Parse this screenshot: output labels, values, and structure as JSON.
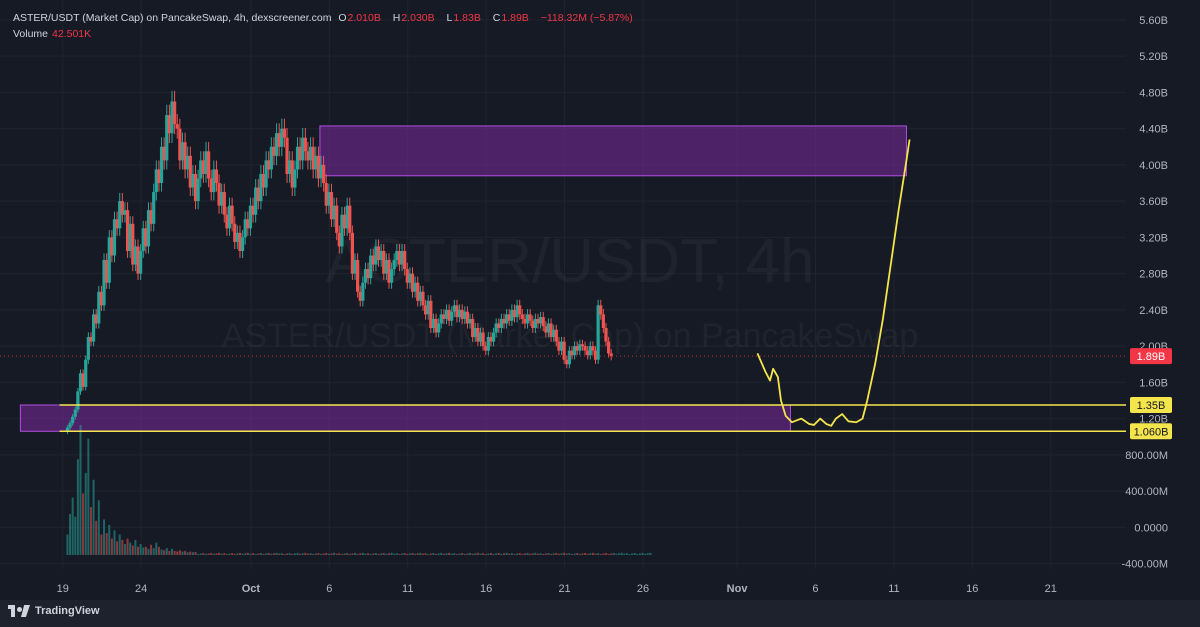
{
  "header": {
    "title": "ASTER/USDT (Market Cap) on PancakeSwap, 4h, dexscreener.com",
    "ohlc": [
      {
        "label": "O",
        "value": "2.010B"
      },
      {
        "label": "H",
        "value": "2.030B"
      },
      {
        "label": "L",
        "value": "1.83B"
      },
      {
        "label": "C",
        "value": "1.89B"
      }
    ],
    "change": "−118.32M (−5.87%)",
    "volume_label": "Volume",
    "volume_value": "42.501K"
  },
  "watermark": {
    "line1": "ASTER/USDT, 4h",
    "line2": "ASTER/USDT (Market Cap) on PancakeSwap"
  },
  "footer": {
    "brand": "TradingView"
  },
  "colors": {
    "background": "#161a25",
    "up": "#26a69a",
    "down": "#ef5350",
    "zone_fill": "#7b2a9e",
    "zone_border": "#b04fe0",
    "projection": "#f5e54c",
    "price_badge": "#f23645"
  },
  "chart_data": {
    "type": "candlestick",
    "title": "ASTER/USDT (Market Cap) on PancakeSwap, 4h, dexscreener.com",
    "y_unit": "USD market cap",
    "price_axis": {
      "ticks": [
        {
          "value": 5600000000.0,
          "label": "5.60B"
        },
        {
          "value": 5200000000.0,
          "label": "5.20B"
        },
        {
          "value": 4800000000.0,
          "label": "4.80B"
        },
        {
          "value": 4400000000.0,
          "label": "4.40B"
        },
        {
          "value": 4000000000.0,
          "label": "4.00B"
        },
        {
          "value": 3600000000.0,
          "label": "3.60B"
        },
        {
          "value": 3200000000.0,
          "label": "3.20B"
        },
        {
          "value": 2800000000.0,
          "label": "2.80B"
        },
        {
          "value": 2400000000.0,
          "label": "2.40B"
        },
        {
          "value": 2000000000.0,
          "label": "2.00B"
        },
        {
          "value": 1600000000.0,
          "label": "1.60B"
        },
        {
          "value": 1200000000.0,
          "label": "1.20B"
        },
        {
          "value": 800000000.0,
          "label": "800.00M"
        },
        {
          "value": 400000000.0,
          "label": "400.00M"
        },
        {
          "value": 0,
          "label": "0.0000"
        },
        {
          "value": -400000000.0,
          "label": "-400.00M"
        }
      ],
      "range": [
        -460000000.0,
        5820000000.0
      ]
    },
    "time_axis": {
      "ticks": [
        "19",
        "24",
        "Oct",
        "6",
        "11",
        "16",
        "21",
        "26",
        "Nov",
        "6",
        "11",
        "16",
        "21"
      ],
      "tick_days": [
        0,
        5,
        12,
        17,
        22,
        27,
        32,
        37,
        43,
        48,
        53,
        58,
        63
      ],
      "range_days": [
        -4,
        67.8
      ]
    },
    "price_labels": [
      {
        "label": "1.89B",
        "value": 1890000000.0,
        "style": "last"
      },
      {
        "label": "1.35B",
        "value": 1350000000.0,
        "style": "level"
      },
      {
        "label": "1.060B",
        "value": 1060000000.0,
        "style": "level"
      }
    ],
    "horizontal_levels": [
      1350000000.0,
      1060000000.0
    ],
    "zones": [
      {
        "name": "resistance",
        "day_start": 16.4,
        "day_end": 53.8,
        "top": 4430000000.0,
        "bottom": 3880000000.0
      },
      {
        "name": "support",
        "day_start": -2.7,
        "day_end": 46.4,
        "top": 1350000000.0,
        "bottom": 1060000000.0
      }
    ],
    "projection_path": [
      [
        44.3,
        1920000000.0
      ],
      [
        44.8,
        1720000000.0
      ],
      [
        45.1,
        1620000000.0
      ],
      [
        45.3,
        1750000000.0
      ],
      [
        45.6,
        1660000000.0
      ],
      [
        45.8,
        1400000000.0
      ],
      [
        46.1,
        1230000000.0
      ],
      [
        46.5,
        1160000000.0
      ],
      [
        47.1,
        1200000000.0
      ],
      [
        47.6,
        1140000000.0
      ],
      [
        47.9,
        1130000000.0
      ],
      [
        48.3,
        1200000000.0
      ],
      [
        48.7,
        1140000000.0
      ],
      [
        49.0,
        1120000000.0
      ],
      [
        49.3,
        1200000000.0
      ],
      [
        49.7,
        1250000000.0
      ],
      [
        50.1,
        1170000000.0
      ],
      [
        50.6,
        1160000000.0
      ],
      [
        51.0,
        1200000000.0
      ],
      [
        51.3,
        1400000000.0
      ],
      [
        51.8,
        1800000000.0
      ],
      [
        52.3,
        2300000000.0
      ],
      [
        52.8,
        2900000000.0
      ],
      [
        53.3,
        3500000000.0
      ],
      [
        53.8,
        4050000000.0
      ],
      [
        54.0,
        4280000000.0
      ]
    ],
    "close_series": {
      "day_start": 0.3,
      "step_days": 0.1667,
      "values": [
        1100000000.0,
        1150000000.0,
        1220000000.0,
        1300000000.0,
        1500000000.0,
        1700000000.0,
        1550000000.0,
        1850000000.0,
        2100000000.0,
        2050000000.0,
        2350000000.0,
        2250000000.0,
        2600000000.0,
        2450000000.0,
        2950000000.0,
        2700000000.0,
        3200000000.0,
        3000000000.0,
        3400000000.0,
        3300000000.0,
        3600000000.0,
        3450000000.0,
        3500000000.0,
        3050000000.0,
        3350000000.0,
        2900000000.0,
        3100000000.0,
        2800000000.0,
        3050000000.0,
        3300000000.0,
        3100000000.0,
        3500000000.0,
        3350000000.0,
        3700000000.0,
        3950000000.0,
        3800000000.0,
        4200000000.0,
        4050000000.0,
        4550000000.0,
        4350000000.0,
        4700000000.0,
        4450000000.0,
        4400000000.0,
        4050000000.0,
        4250000000.0,
        3950000000.0,
        4100000000.0,
        3750000000.0,
        3900000000.0,
        3600000000.0,
        3850000000.0,
        4050000000.0,
        3900000000.0,
        4150000000.0,
        3850000000.0,
        3700000000.0,
        3950000000.0,
        3800000000.0,
        3550000000.0,
        3700000000.0,
        3450000000.0,
        3300000000.0,
        3550000000.0,
        3350000000.0,
        3150000000.0,
        3250000000.0,
        3050000000.0,
        3200000000.0,
        3400000000.0,
        3300000000.0,
        3550000000.0,
        3450000000.0,
        3750000000.0,
        3600000000.0,
        3900000000.0,
        3750000000.0,
        4050000000.0,
        3950000000.0,
        4200000000.0,
        4100000000.0,
        4350000000.0,
        4200000000.0,
        4400000000.0,
        4300000000.0,
        3900000000.0,
        4050000000.0,
        3750000000.0,
        3950000000.0,
        4200000000.0,
        4050000000.0,
        4300000000.0,
        4150000000.0,
        4050000000.0,
        4200000000.0,
        3950000000.0,
        4100000000.0,
        3850000000.0,
        4000000000.0,
        3800000000.0,
        3550000000.0,
        3700000000.0,
        3400000000.0,
        3550000000.0,
        3250000000.0,
        3100000000.0,
        3450000000.0,
        3300000000.0,
        3550000000.0,
        3250000000.0,
        2800000000.0,
        2950000000.0,
        2600000000.0,
        2500000000.0,
        2700000000.0,
        2850000000.0,
        2750000000.0,
        3000000000.0,
        2900000000.0,
        3100000000.0,
        2950000000.0,
        3050000000.0,
        2800000000.0,
        2950000000.0,
        2700000000.0,
        2850000000.0,
        2950000000.0,
        3050000000.0,
        2900000000.0,
        3050000000.0,
        2850000000.0,
        2700000000.0,
        2800000000.0,
        2600000000.0,
        2700000000.0,
        2500000000.0,
        2600000000.0,
        2450000000.0,
        2350000000.0,
        2500000000.0,
        2200000000.0,
        2300000000.0,
        2150000000.0,
        2250000000.0,
        2350000000.0,
        2300000000.0,
        2400000000.0,
        2280000000.0,
        2380000000.0,
        2450000000.0,
        2320000000.0,
        2400000000.0,
        2300000000.0,
        2380000000.0,
        2250000000.0,
        2300000000.0,
        2100000000.0,
        2200000000.0,
        2050000000.0,
        2150000000.0,
        2000000000.0,
        1950000000.0,
        2100000000.0,
        2050000000.0,
        2150000000.0,
        2250000000.0,
        2200000000.0,
        2300000000.0,
        2250000000.0,
        2350000000.0,
        2280000000.0,
        2400000000.0,
        2320000000.0,
        2450000000.0,
        2350000000.0,
        2300000000.0,
        2250000000.0,
        2350000000.0,
        2280000000.0,
        2200000000.0,
        2300000000.0,
        2250000000.0,
        2320000000.0,
        2220000000.0,
        2150000000.0,
        2250000000.0,
        2100000000.0,
        2180000000.0,
        2050000000.0,
        1950000000.0,
        2050000000.0,
        1850000000.0,
        1800000000.0,
        1950000000.0,
        1900000000.0,
        2000000000.0,
        1950000000.0,
        2020000000.0,
        2000000000.0,
        1950000000.0,
        1900000000.0,
        2000000000.0,
        1950000000.0,
        1850000000.0,
        2450000000.0,
        2350000000.0,
        2200000000.0,
        2050000000.0,
        1920000000.0,
        1890000000.0
      ]
    },
    "volume_series": {
      "day_start": 0.3,
      "step_days": 0.1667,
      "values": [
        150000000.0,
        300000000.0,
        420000000.0,
        280000000.0,
        700000000.0,
        950000000.0,
        450000000.0,
        600000000.0,
        850000000.0,
        350000000.0,
        550000000.0,
        250000000.0,
        400000000.0,
        150000000.0,
        260000000.0,
        160000000.0,
        220000000.0,
        120000000.0,
        180000000.0,
        100000000.0,
        150000000.0,
        110000000.0,
        80000000.0,
        120000000.0,
        90000000.0,
        70000000.0,
        110000000.0,
        60000000.0,
        80000000.0,
        55000000.0,
        60000000.0,
        45000000.0,
        75000000.0,
        50000000.0,
        90000000.0,
        60000000.0,
        40000000.0,
        35000000.0,
        50000000.0,
        30000000.0,
        45000000.0,
        30000000.0,
        25000000.0,
        35000000.0,
        25000000.0,
        30000000.0,
        20000000.0,
        25000000.0,
        20000000.0,
        22000000.0
      ],
      "tail_value": 12000000.0,
      "tail_count": 174
    }
  }
}
